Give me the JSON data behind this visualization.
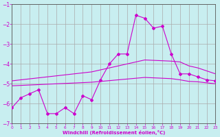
{
  "xlabel": "Windchill (Refroidissement éolien,°C)",
  "bg_color": "#c8eef0",
  "line_color": "#cc00cc",
  "grid_color": "#aaaaaa",
  "xlim": [
    0,
    23
  ],
  "ylim": [
    -7,
    -1
  ],
  "yticks": [
    -7,
    -6,
    -5,
    -4,
    -3,
    -2,
    -1
  ],
  "xticks": [
    0,
    1,
    2,
    3,
    4,
    5,
    6,
    7,
    8,
    9,
    10,
    11,
    12,
    13,
    14,
    15,
    16,
    17,
    18,
    19,
    20,
    21,
    22,
    23
  ],
  "hours": [
    0,
    1,
    2,
    3,
    4,
    5,
    6,
    7,
    8,
    9,
    10,
    11,
    12,
    13,
    14,
    15,
    16,
    17,
    18,
    19,
    20,
    21,
    22,
    23
  ],
  "main_line": [
    -6.2,
    -5.7,
    -5.5,
    -5.3,
    -6.5,
    -6.5,
    -6.2,
    -6.5,
    -5.6,
    -5.8,
    -4.8,
    -4.0,
    -3.5,
    -3.5,
    -1.55,
    -1.7,
    -2.2,
    -2.1,
    -3.5,
    -4.5,
    -4.5,
    -4.65,
    -4.8,
    -4.85
  ],
  "upper_ref": [
    -4.85,
    -4.8,
    -4.75,
    -4.7,
    -4.65,
    -4.6,
    -4.55,
    -4.5,
    -4.45,
    -4.4,
    -4.3,
    -4.2,
    -4.1,
    -4.0,
    -3.9,
    -3.8,
    -3.82,
    -3.84,
    -3.86,
    -3.9,
    -4.1,
    -4.2,
    -4.35,
    -4.5
  ],
  "lower_ref": [
    -5.1,
    -5.08,
    -5.06,
    -5.04,
    -5.02,
    -5.0,
    -4.98,
    -4.96,
    -4.94,
    -4.92,
    -4.88,
    -4.84,
    -4.8,
    -4.76,
    -4.72,
    -4.68,
    -4.7,
    -4.72,
    -4.74,
    -4.8,
    -4.88,
    -4.9,
    -4.95,
    -5.0
  ]
}
